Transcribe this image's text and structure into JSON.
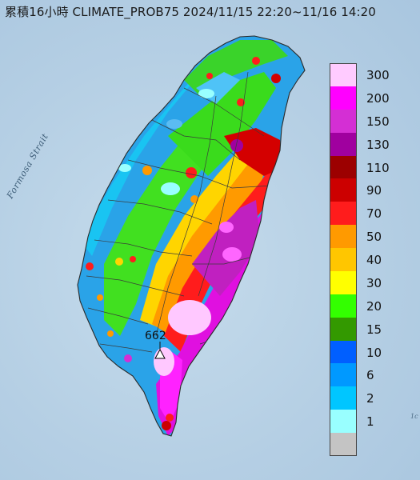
{
  "title": "累積16小時 CLIMATE_PROB75 2024/11/15 22:20~11/16 14:20",
  "strait_label": "Formosa Strait",
  "max_station": {
    "value": "662",
    "icon": "triangle-station-icon"
  },
  "edge_fragment": "1c",
  "legend": [
    {
      "label": "300",
      "color": "#ffcbff"
    },
    {
      "label": "200",
      "color": "#ff00ff"
    },
    {
      "label": "150",
      "color": "#d42fd4"
    },
    {
      "label": "130",
      "color": "#a0009f"
    },
    {
      "label": "110",
      "color": "#9c0000"
    },
    {
      "label": "90",
      "color": "#cc0000"
    },
    {
      "label": "70",
      "color": "#ff1c1c"
    },
    {
      "label": "50",
      "color": "#ff9a00"
    },
    {
      "label": "40",
      "color": "#ffc600"
    },
    {
      "label": "30",
      "color": "#ffff00"
    },
    {
      "label": "20",
      "color": "#33ff00"
    },
    {
      "label": "15",
      "color": "#339900"
    },
    {
      "label": "10",
      "color": "#005fff"
    },
    {
      "label": "6",
      "color": "#0099ff"
    },
    {
      "label": "2",
      "color": "#00c6ff"
    },
    {
      "label": "1",
      "color": "#99ffff"
    },
    {
      "label": "",
      "color": "#c4c4c4"
    }
  ]
}
